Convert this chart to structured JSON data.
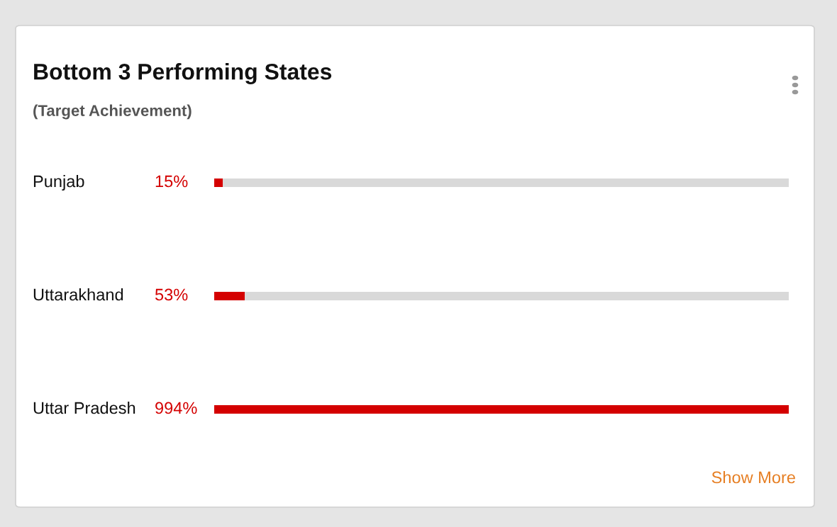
{
  "chart_data": {
    "type": "bar",
    "orientation": "horizontal",
    "stacked": true,
    "title": "Bottom 3 Performing States",
    "subtitle": "(Target Achievement)",
    "categories": [
      "Punjab",
      "Uttarakhand",
      "Uttar Pradesh"
    ],
    "series": [
      {
        "color": "#d40000",
        "values": [
          15,
          53,
          994
        ],
        "value_labels": [
          "15%",
          "53%",
          "994%"
        ]
      },
      {
        "color": "#d9d9d9",
        "values": [
          979,
          941,
          0
        ]
      }
    ],
    "xlim": [
      0,
      994
    ],
    "legend": false,
    "annotations": [
      "Show More"
    ]
  }
}
